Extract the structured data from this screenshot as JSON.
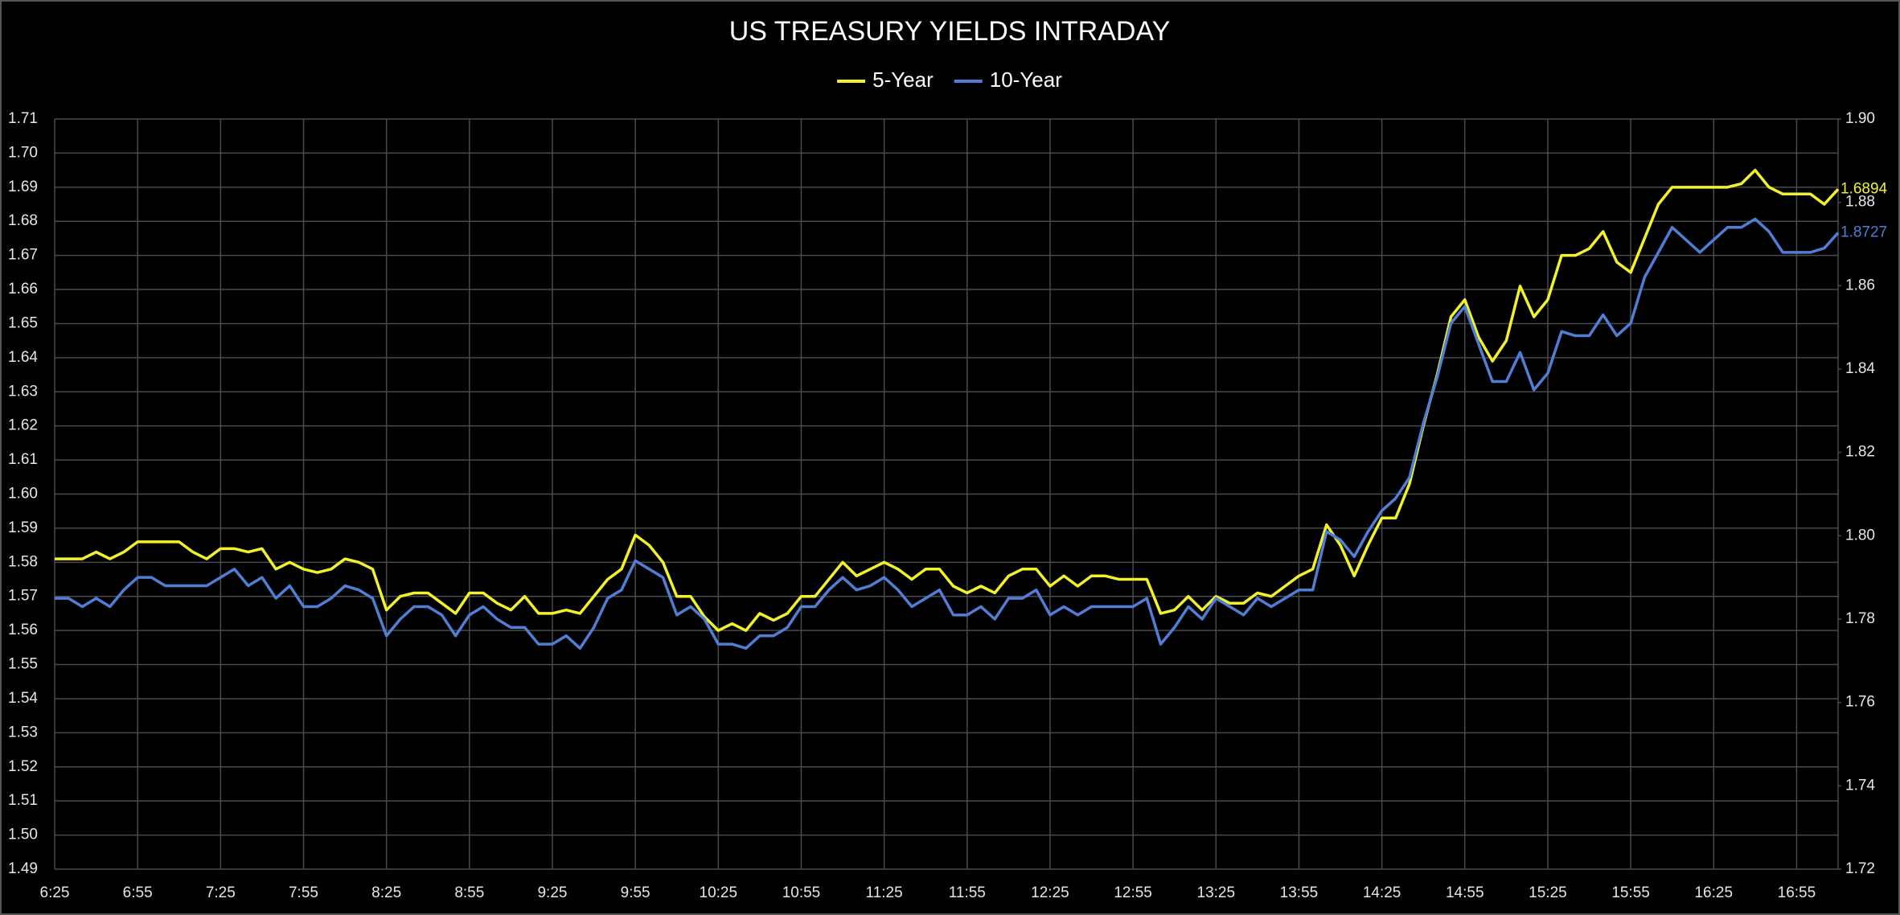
{
  "chart_data": {
    "type": "line",
    "title": "US TREASURY YIELDS INTRADAY",
    "categories": [
      "6:25",
      null,
      null,
      null,
      null,
      null,
      "6:55",
      null,
      null,
      null,
      null,
      null,
      "7:25",
      null,
      null,
      null,
      null,
      null,
      "7:55",
      null,
      null,
      null,
      null,
      null,
      "8:25",
      null,
      null,
      null,
      null,
      null,
      "8:55",
      null,
      null,
      null,
      null,
      null,
      "9:25",
      null,
      null,
      null,
      null,
      null,
      "9:55",
      null,
      null,
      null,
      null,
      null,
      "10:25",
      null,
      null,
      null,
      null,
      null,
      "10:55",
      null,
      null,
      null,
      null,
      null,
      "11:25",
      null,
      null,
      null,
      null,
      null,
      "11:55",
      null,
      null,
      null,
      null,
      null,
      "12:25",
      null,
      null,
      null,
      null,
      null,
      "12:55",
      null,
      null,
      null,
      null,
      null,
      "13:25",
      null,
      null,
      null,
      null,
      null,
      "13:55",
      null,
      null,
      null,
      null,
      null,
      "14:25",
      null,
      null,
      null,
      null,
      null,
      "14:55",
      null,
      null,
      null,
      null,
      null,
      "15:25",
      null,
      null,
      null,
      null,
      null,
      "15:55",
      null,
      null,
      null,
      null,
      null,
      "16:25",
      null,
      null,
      null,
      null,
      null,
      "16:55",
      null,
      null,
      null
    ],
    "series": [
      {
        "name": "5-Year",
        "color": "#f2f22a",
        "values": [
          1.581,
          1.581,
          1.581,
          1.583,
          1.581,
          1.583,
          1.586,
          1.586,
          1.586,
          1.586,
          1.583,
          1.581,
          1.584,
          1.584,
          1.583,
          1.584,
          1.578,
          1.58,
          1.578,
          1.577,
          1.578,
          1.581,
          1.58,
          1.578,
          1.566,
          1.57,
          1.571,
          1.571,
          1.568,
          1.565,
          1.571,
          1.571,
          1.568,
          1.566,
          1.57,
          1.565,
          1.565,
          1.566,
          1.565,
          1.57,
          1.575,
          1.578,
          1.588,
          1.585,
          1.58,
          1.57,
          1.57,
          1.564,
          1.56,
          1.562,
          1.56,
          1.565,
          1.563,
          1.565,
          1.57,
          1.57,
          1.575,
          1.58,
          1.576,
          1.578,
          1.58,
          1.578,
          1.575,
          1.578,
          1.578,
          1.573,
          1.571,
          1.573,
          1.571,
          1.576,
          1.578,
          1.578,
          1.573,
          1.576,
          1.573,
          1.576,
          1.576,
          1.575,
          1.575,
          1.575,
          1.565,
          1.566,
          1.57,
          1.566,
          1.57,
          1.568,
          1.568,
          1.571,
          1.57,
          1.573,
          1.576,
          1.578,
          1.591,
          1.585,
          1.576,
          1.585,
          1.593,
          1.593,
          1.603,
          1.62,
          1.635,
          1.652,
          1.657,
          1.646,
          1.639,
          1.645,
          1.661,
          1.652,
          1.657,
          1.67,
          1.67,
          1.672,
          1.677,
          1.668,
          1.665,
          1.675,
          1.685,
          1.69,
          1.69,
          1.69,
          1.69,
          1.69,
          1.691,
          1.695,
          1.69,
          1.688,
          1.688,
          1.688,
          1.685,
          1.6894
        ]
      },
      {
        "name": "10-Year",
        "color": "#4f7ed4",
        "axis": "y2",
        "values": [
          1.785,
          1.785,
          1.783,
          1.785,
          1.783,
          1.787,
          1.79,
          1.79,
          1.788,
          1.788,
          1.788,
          1.788,
          1.79,
          1.792,
          1.788,
          1.79,
          1.785,
          1.788,
          1.783,
          1.783,
          1.785,
          1.788,
          1.787,
          1.785,
          1.776,
          1.78,
          1.783,
          1.783,
          1.781,
          1.776,
          1.781,
          1.783,
          1.78,
          1.778,
          1.778,
          1.774,
          1.774,
          1.776,
          1.773,
          1.778,
          1.785,
          1.787,
          1.794,
          1.792,
          1.79,
          1.781,
          1.783,
          1.78,
          1.774,
          1.774,
          1.773,
          1.776,
          1.776,
          1.778,
          1.783,
          1.783,
          1.787,
          1.79,
          1.787,
          1.788,
          1.79,
          1.787,
          1.783,
          1.785,
          1.787,
          1.781,
          1.781,
          1.783,
          1.78,
          1.785,
          1.785,
          1.787,
          1.781,
          1.783,
          1.781,
          1.783,
          1.783,
          1.783,
          1.783,
          1.785,
          1.774,
          1.778,
          1.783,
          1.78,
          1.785,
          1.783,
          1.781,
          1.785,
          1.783,
          1.785,
          1.787,
          1.787,
          1.801,
          1.799,
          1.795,
          1.801,
          1.806,
          1.809,
          1.814,
          1.827,
          1.838,
          1.851,
          1.855,
          1.846,
          1.837,
          1.837,
          1.844,
          1.835,
          1.839,
          1.849,
          1.848,
          1.848,
          1.853,
          1.848,
          1.851,
          1.862,
          1.868,
          1.874,
          1.871,
          1.868,
          1.871,
          1.874,
          1.874,
          1.876,
          1.873,
          1.868,
          1.868,
          1.868,
          1.869,
          1.8727
        ]
      }
    ],
    "ylim": [
      1.49,
      1.71
    ],
    "yticks": [
      1.49,
      {
        "value": 1.5,
        "label": "1.50"
      },
      1.51,
      1.52,
      1.53,
      1.54,
      1.55,
      1.56,
      1.57,
      1.58,
      1.59,
      {
        "value": 1.6,
        "label": "1.60"
      },
      1.61,
      1.62,
      1.63,
      1.64,
      1.65,
      1.66,
      1.67,
      1.68,
      1.69,
      {
        "value": 1.7,
        "label": "1.70"
      },
      1.71
    ],
    "y2lim": [
      1.72,
      1.9
    ],
    "y2ticks": [
      1.72,
      1.74,
      1.76,
      1.78,
      {
        "value": 1.8,
        "label": "1.80"
      },
      1.82,
      1.84,
      1.86,
      1.88,
      {
        "value": 1.9,
        "label": "1.90"
      }
    ],
    "grid": true,
    "legend": "top"
  }
}
